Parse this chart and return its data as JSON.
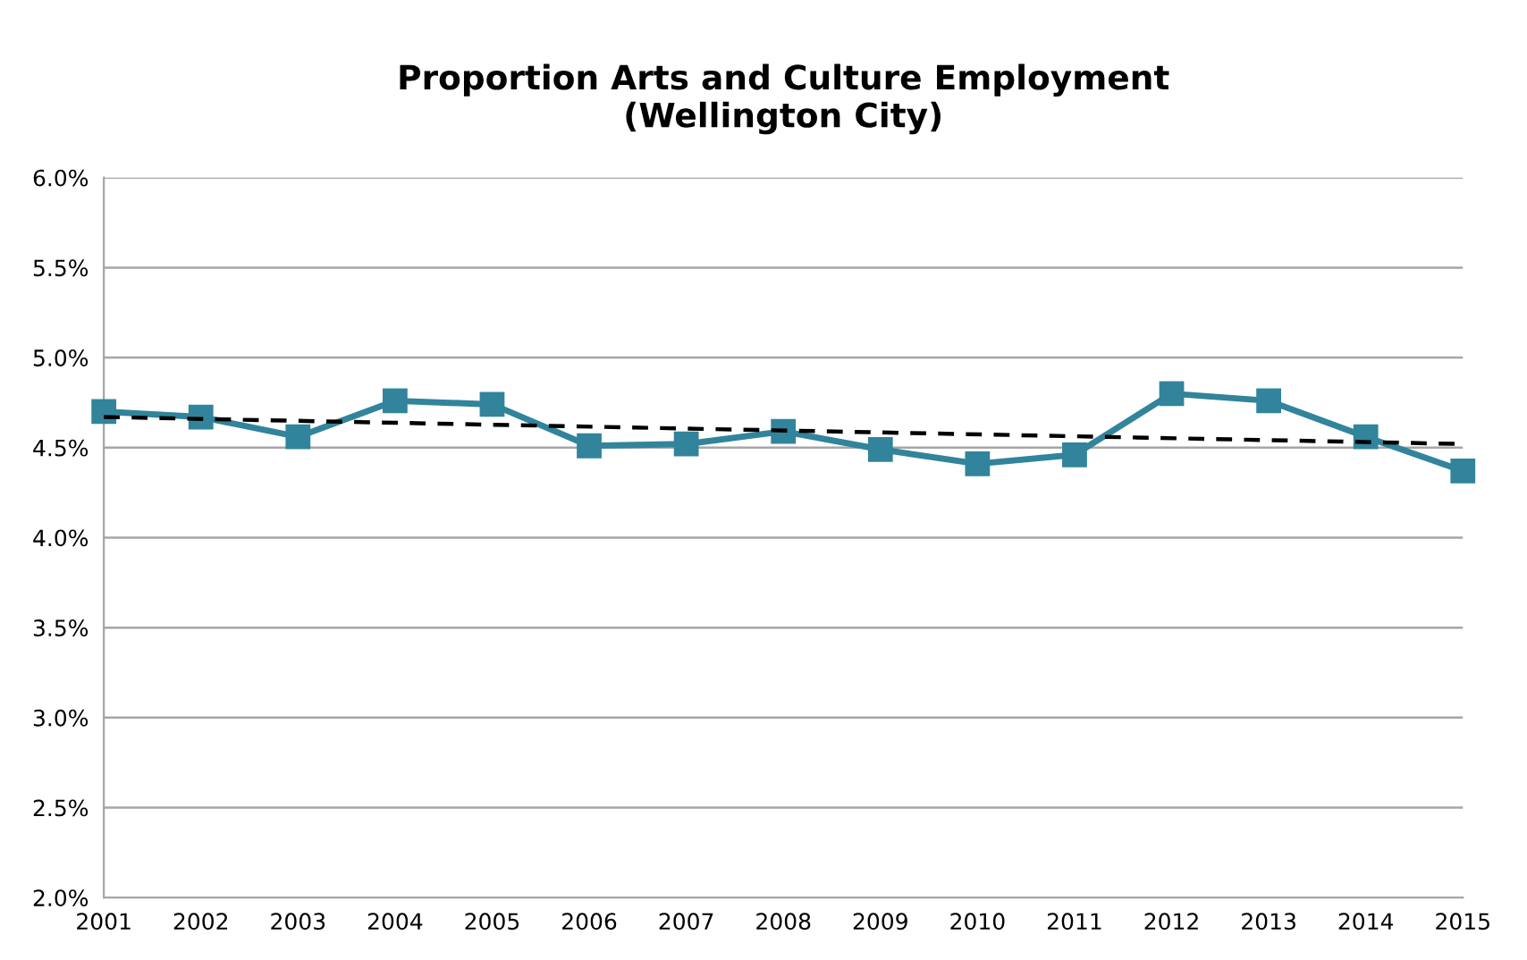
{
  "chart_data": {
    "type": "line",
    "title": "Proportion Arts and Culture Employment\n(Wellington City)",
    "x": [
      2001,
      2002,
      2003,
      2004,
      2005,
      2006,
      2007,
      2008,
      2009,
      2010,
      2011,
      2012,
      2013,
      2014,
      2015
    ],
    "series": [
      {
        "color": "#31849b",
        "marker": "square",
        "line_style": "solid",
        "values": [
          4.7,
          4.67,
          4.56,
          4.76,
          4.74,
          4.51,
          4.52,
          4.59,
          4.49,
          4.41,
          4.46,
          4.8,
          4.76,
          4.56,
          4.37
        ]
      },
      {
        "type": "line",
        "color": "#000000",
        "marker": "none",
        "line_style": "dashed",
        "x": [
          2001,
          2015
        ],
        "values": [
          4.67,
          4.52
        ]
      }
    ],
    "xlim": [
      2001,
      2015
    ],
    "xticks": [
      2001,
      2002,
      2003,
      2004,
      2005,
      2006,
      2007,
      2008,
      2009,
      2010,
      2011,
      2012,
      2013,
      2014,
      2015
    ],
    "ylim": [
      2.0,
      6.0
    ],
    "yticks": [
      {
        "value": 2.0,
        "label": "2.0%"
      },
      {
        "value": 2.5,
        "label": "2.5%"
      },
      {
        "value": 3.0,
        "label": "3.0%"
      },
      {
        "value": 3.5,
        "label": "3.5%"
      },
      {
        "value": 4.0,
        "label": "4.0%"
      },
      {
        "value": 4.5,
        "label": "4.5%"
      },
      {
        "value": 5.0,
        "label": "5.0%"
      },
      {
        "value": 5.5,
        "label": "5.5%"
      },
      {
        "value": 6.0,
        "label": "6.0%"
      }
    ],
    "grid": "y"
  }
}
